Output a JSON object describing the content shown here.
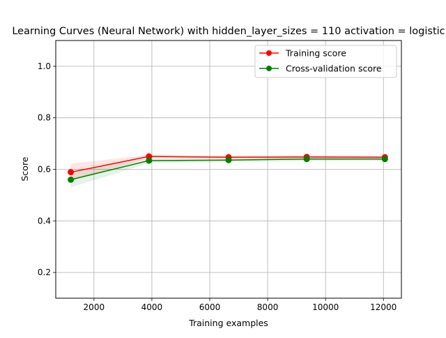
{
  "chart_data": {
    "type": "line",
    "title": "Learning Curves (Neural Network) with hidden_layer_sizes = 110 activation = logistic",
    "xlabel": "Training examples",
    "ylabel": "Score",
    "xlim": [
      680,
      12620
    ],
    "ylim": [
      0.1,
      1.1
    ],
    "xticks": [
      2000,
      4000,
      6000,
      8000,
      10000,
      12000
    ],
    "yticks": [
      0.2,
      0.4,
      0.6,
      0.8,
      1.0
    ],
    "grid": true,
    "legend_position": "upper right",
    "x": [
      1200,
      3900,
      6650,
      9350,
      12050
    ],
    "series": [
      {
        "name": "Training score",
        "color": "#ff0000",
        "values": [
          0.589,
          0.65,
          0.647,
          0.648,
          0.647
        ],
        "band_lower": [
          0.556,
          0.644,
          0.642,
          0.643,
          0.642
        ],
        "band_upper": [
          0.622,
          0.656,
          0.652,
          0.653,
          0.652
        ]
      },
      {
        "name": "Cross-validation score",
        "color": "#008000",
        "values": [
          0.56,
          0.634,
          0.636,
          0.64,
          0.64
        ],
        "band_lower": [
          0.53,
          0.624,
          0.628,
          0.632,
          0.633
        ],
        "band_upper": [
          0.59,
          0.644,
          0.644,
          0.648,
          0.647
        ]
      }
    ]
  }
}
